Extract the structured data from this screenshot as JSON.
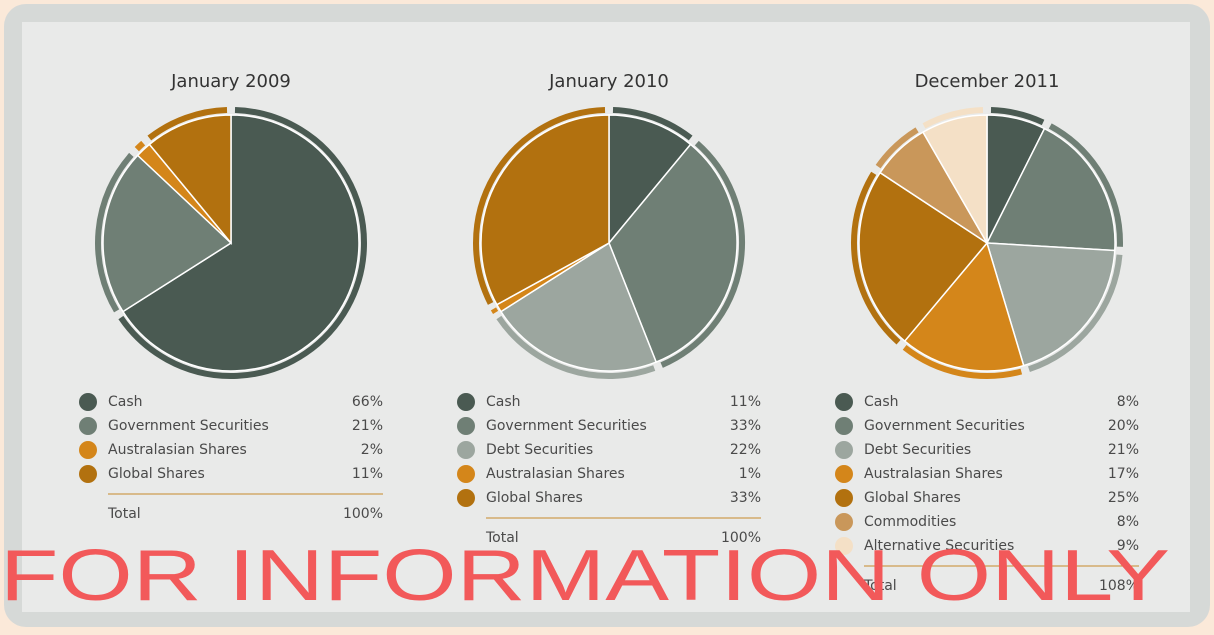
{
  "chart_data": [
    {
      "type": "pie",
      "title": "January 2009",
      "categories": [
        "Cash",
        "Government Securities",
        "Australasian Shares",
        "Global Shares"
      ],
      "values": [
        66,
        21,
        2,
        11
      ],
      "value_labels": [
        "66%",
        "21%",
        "2%",
        "11%"
      ],
      "colors": [
        "#4a5a52",
        "#6f7f75",
        "#d4861a",
        "#b2710f"
      ],
      "total": {
        "label": "Total",
        "value": 100,
        "value_label": "100%"
      }
    },
    {
      "type": "pie",
      "title": "January 2010",
      "categories": [
        "Cash",
        "Government Securities",
        "Debt Securities",
        "Australasian Shares",
        "Global Shares"
      ],
      "values": [
        11,
        33,
        22,
        1,
        33
      ],
      "value_labels": [
        "11%",
        "33%",
        "22%",
        "1%",
        "33%"
      ],
      "colors": [
        "#4a5a52",
        "#6f7f75",
        "#9ca69f",
        "#d4861a",
        "#b2710f"
      ],
      "total": {
        "label": "Total",
        "value": 100,
        "value_label": "100%"
      }
    },
    {
      "type": "pie",
      "title": "December 2011",
      "categories": [
        "Cash",
        "Government Securities",
        "Debt Securities",
        "Australasian Shares",
        "Global Shares",
        "Commodities",
        "Alternative Securities"
      ],
      "values": [
        8,
        20,
        21,
        17,
        25,
        8,
        9
      ],
      "value_labels": [
        "8%",
        "20%",
        "21%",
        "17%",
        "25%",
        "8%",
        "9%"
      ],
      "colors": [
        "#4a5a52",
        "#6f7f75",
        "#9ca69f",
        "#d4861a",
        "#b2710f",
        "#c9975a",
        "#f4e0c6"
      ],
      "total": {
        "label": "Total",
        "value": 108,
        "value_label": "108%"
      }
    }
  ],
  "watermark": "FOR INFORMATION ONLY"
}
